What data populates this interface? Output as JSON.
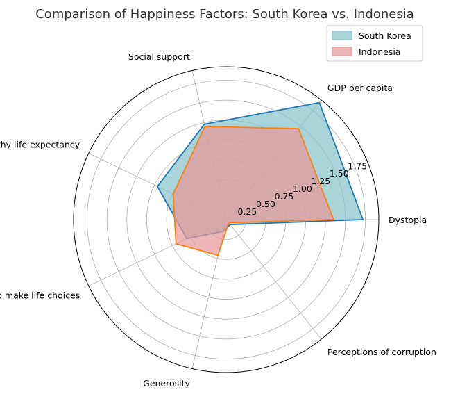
{
  "chart_data": {
    "type": "radar",
    "title": "Comparison of Happiness Factors: South Korea vs. Indonesia",
    "categories": [
      "Dystopia",
      "GDP per capita",
      "Social support",
      "Healthy life expectancy",
      "Freedom to make life choices",
      "Generosity",
      "Perceptions of corruption"
    ],
    "series": [
      {
        "name": "South Korea",
        "values": [
          1.72,
          1.88,
          1.23,
          0.96,
          0.55,
          0.15,
          0.08
        ],
        "line_color": "#1f77b4",
        "fill_color": "#86c3cc"
      },
      {
        "name": "Indonesia",
        "values": [
          1.35,
          1.46,
          1.2,
          0.74,
          0.7,
          0.46,
          0.05
        ],
        "line_color": "#ff7f0e",
        "fill_color": "#e89a9a"
      }
    ],
    "radial_ticks": [
      0.25,
      0.5,
      0.75,
      1.0,
      1.25,
      1.5,
      1.75
    ],
    "radial_tick_labels": [
      "0.25",
      "0.50",
      "0.75",
      "1.00",
      "1.25",
      "1.50",
      "1.75"
    ],
    "rmax": 1.92,
    "grid": true,
    "legend_position": "top-right"
  }
}
